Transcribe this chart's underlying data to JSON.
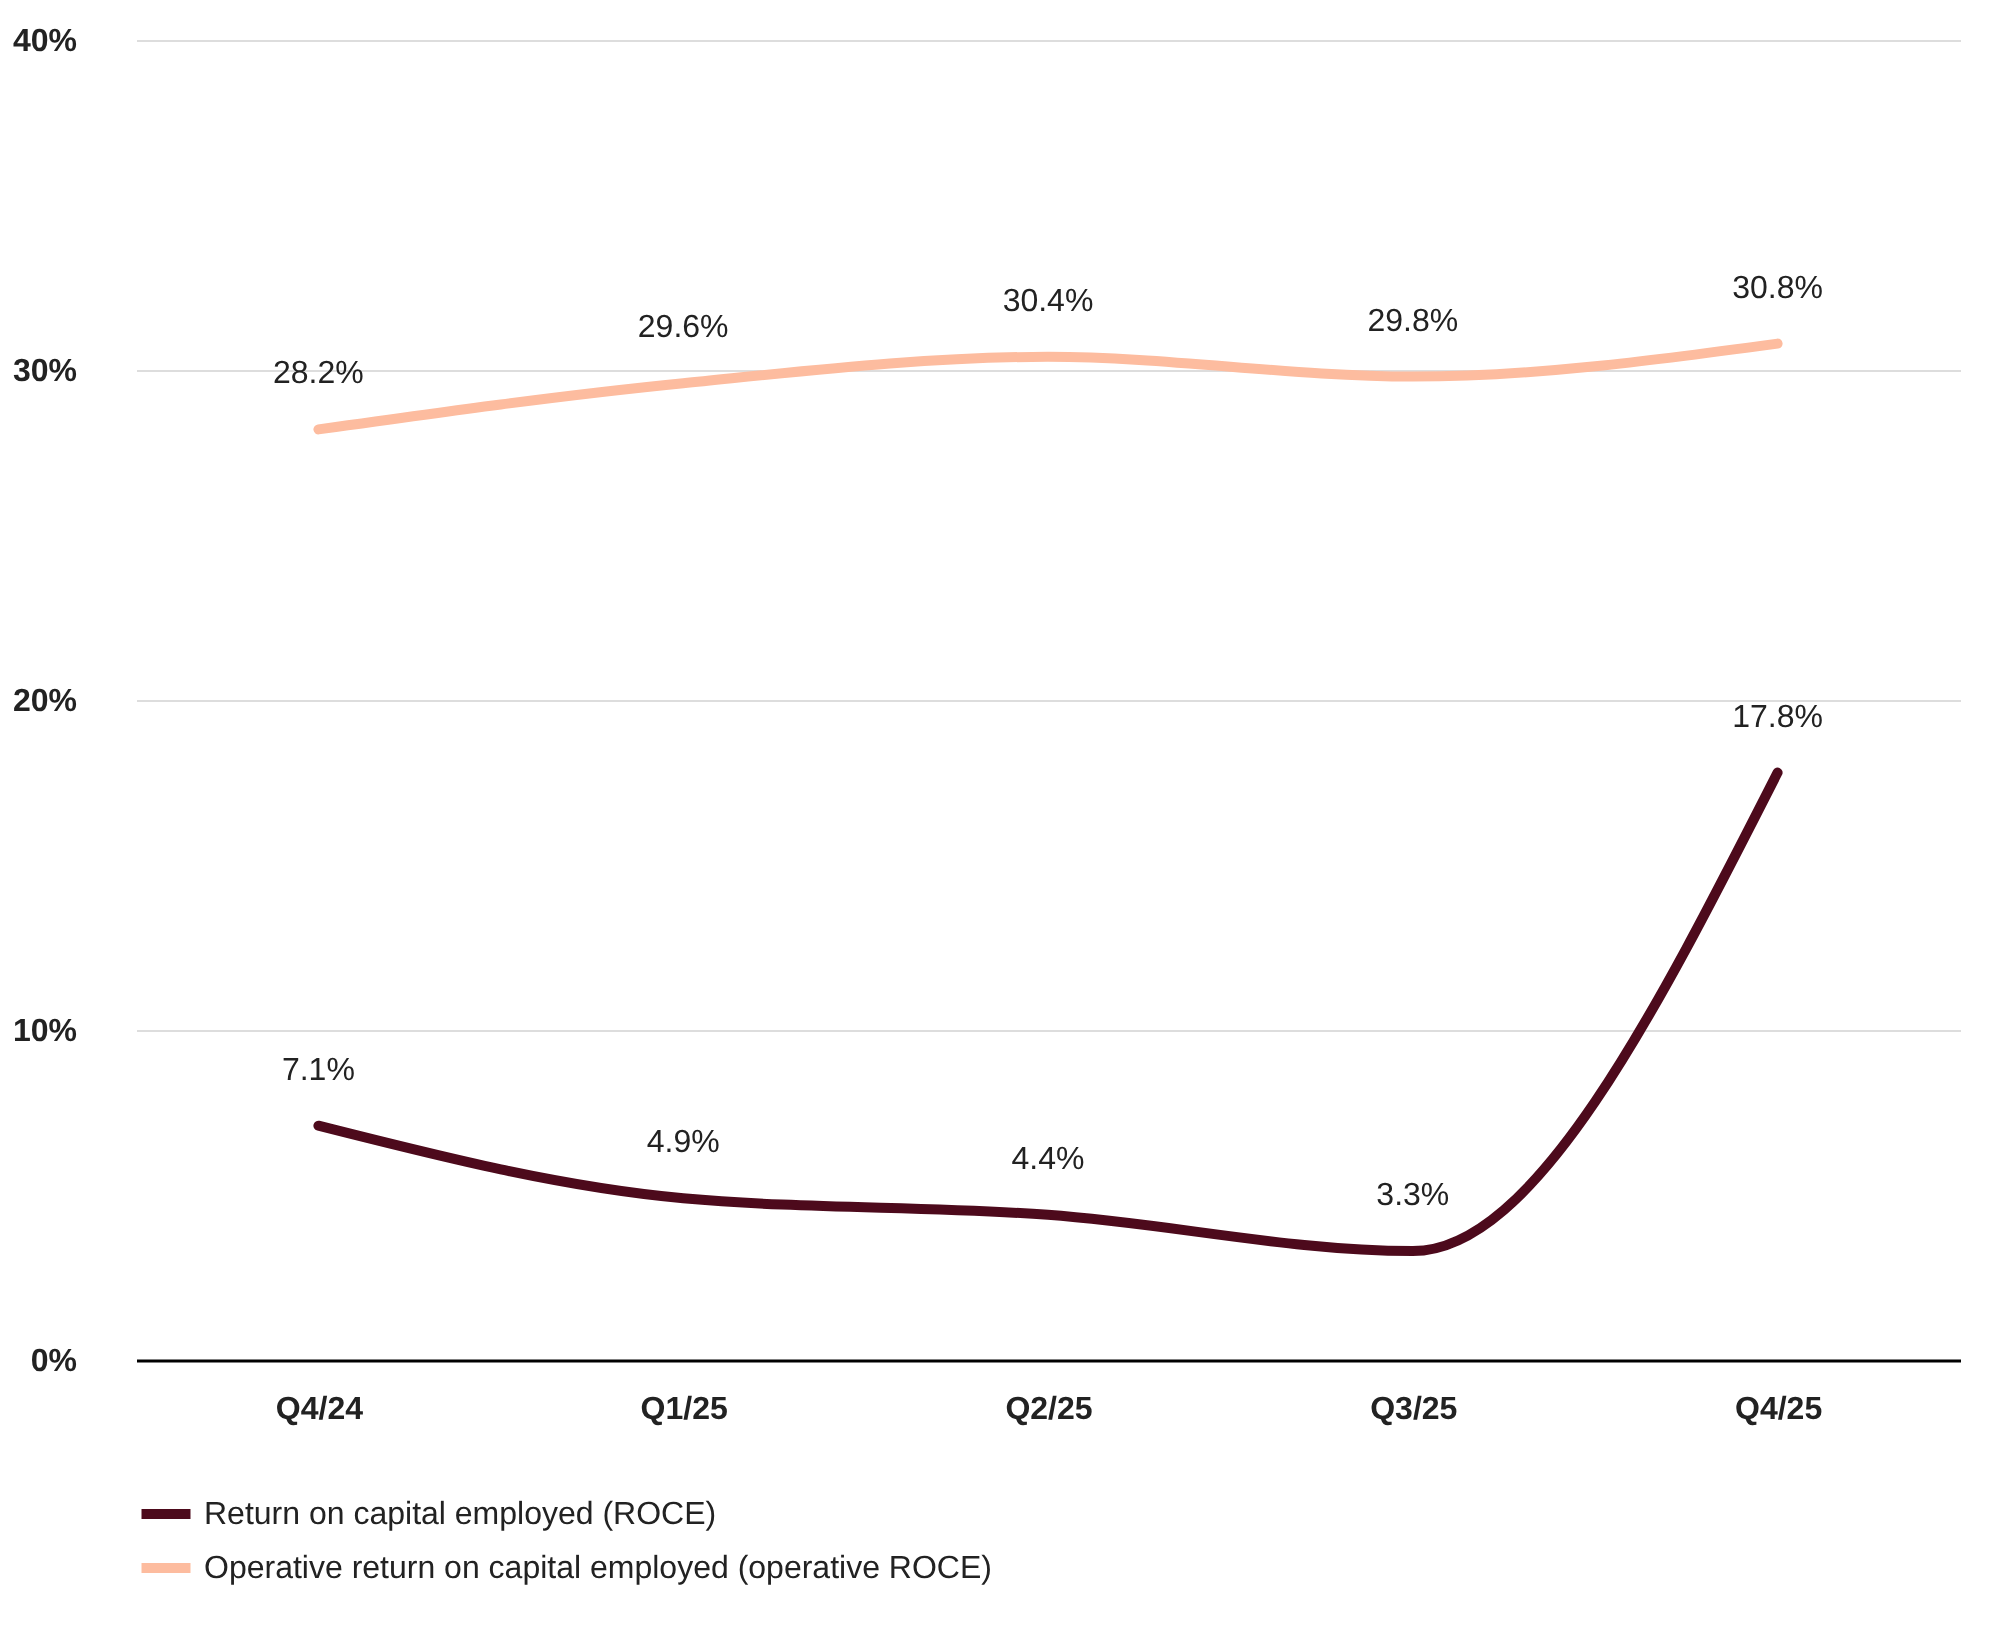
{
  "chart_data": {
    "type": "line",
    "categories": [
      "Q4/24",
      "Q1/25",
      "Q2/25",
      "Q3/25",
      "Q4/25"
    ],
    "series": [
      {
        "name": "Return on capital employed (ROCE)",
        "color": "#4d0a1c",
        "values": [
          7.1,
          4.9,
          4.4,
          3.3,
          17.8
        ],
        "value_labels": [
          "7.1%",
          "4.9%",
          "4.4%",
          "3.3%",
          "17.8%"
        ]
      },
      {
        "name": "Operative return on capital employed (operative ROCE)",
        "color": "#fdbc9f",
        "values": [
          28.2,
          29.6,
          30.4,
          29.8,
          30.8
        ],
        "value_labels": [
          "28.2%",
          "29.6%",
          "30.4%",
          "29.8%",
          "30.8%"
        ]
      }
    ],
    "ylim": [
      0,
      40
    ],
    "yticks": [
      {
        "value": 0,
        "label": "0%"
      },
      {
        "value": 10,
        "label": "10%"
      },
      {
        "value": 20,
        "label": "20%"
      },
      {
        "value": 30,
        "label": "30%"
      },
      {
        "value": 40,
        "label": "40%"
      }
    ],
    "grid": "y",
    "legend": "bottom"
  }
}
